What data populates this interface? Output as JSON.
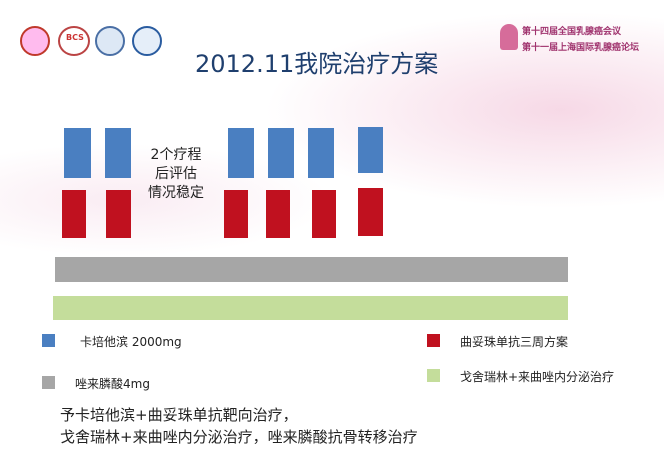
{
  "slide": {
    "title": "2012.11我院治疗方案",
    "logo_left": "BCS",
    "conference": {
      "line1": "第十四届全国乳腺癌会议",
      "line2": "第十一届上海国际乳腺癌论坛"
    },
    "note": [
      "2个疗程",
      "后评估",
      "情况稳定"
    ],
    "legend": [
      {
        "label": "卡培他滨 2000mg"
      },
      {
        "label": "曲妥珠单抗三周方案"
      },
      {
        "label": "唑来膦酸4mg"
      },
      {
        "label": "戈舍瑞林+来曲唑内分泌治疗"
      }
    ],
    "summary": [
      "予卡培他滨+曲妥珠单抗靶向治疗，",
      "戈舍瑞林+来曲唑内分泌治疗，唑来膦酸抗骨转移治疗"
    ]
  }
}
